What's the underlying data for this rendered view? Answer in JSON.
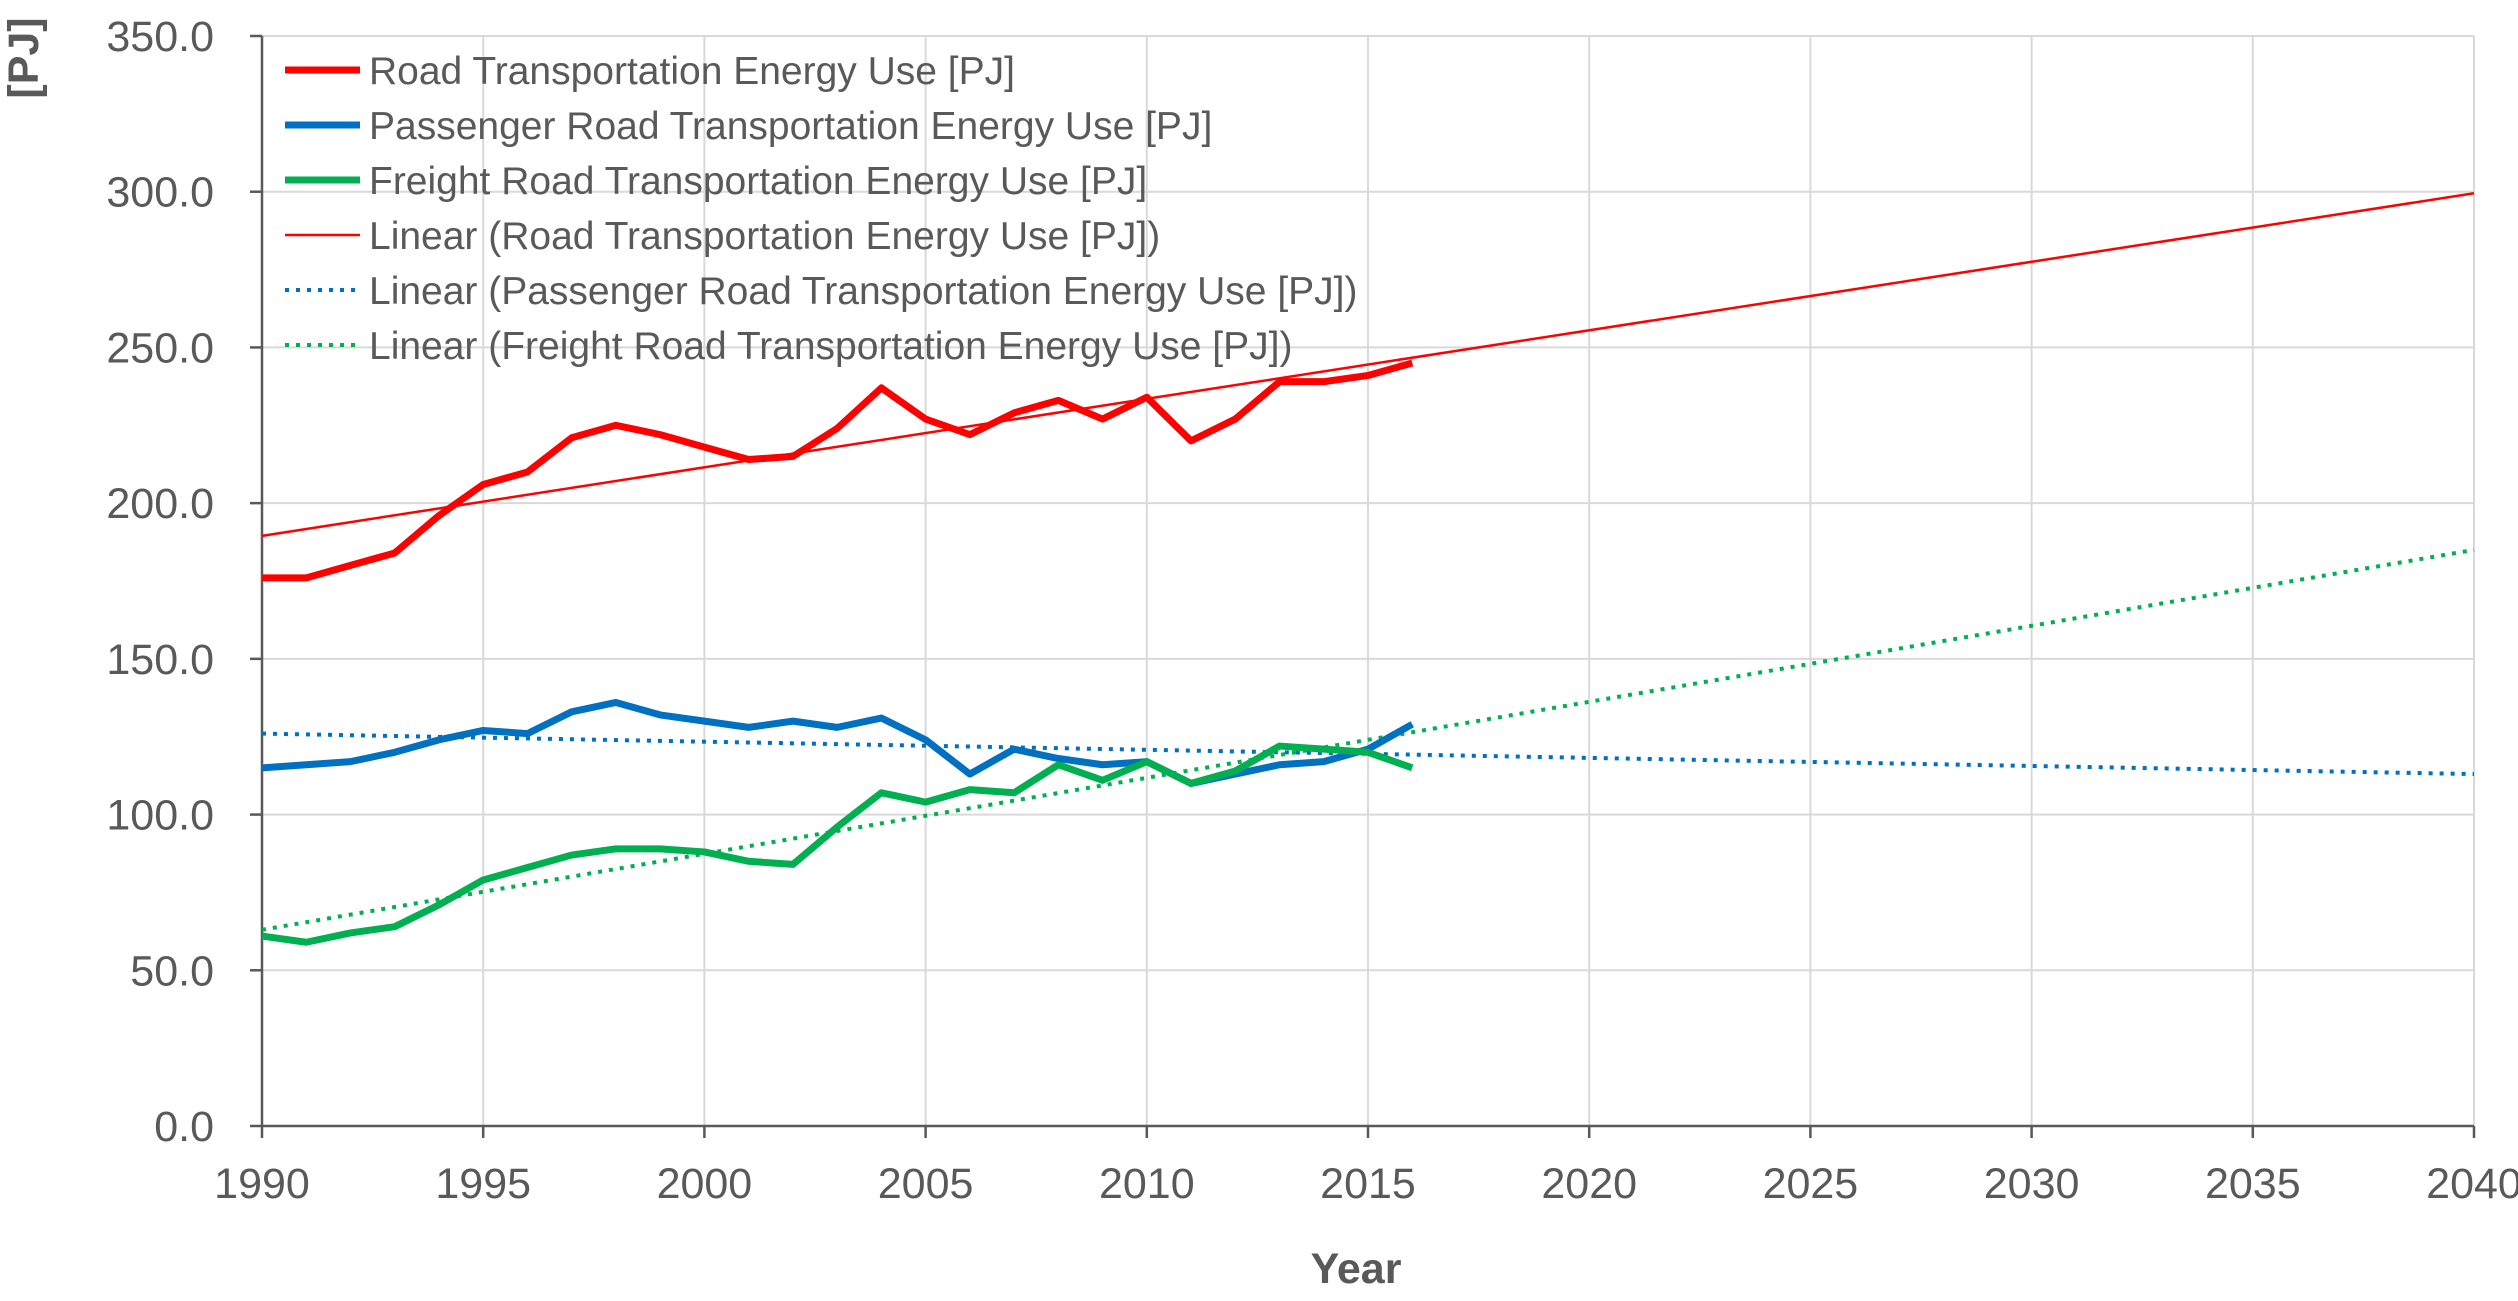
{
  "chart_data": {
    "type": "line",
    "title": "",
    "xlabel": "Year",
    "ylabel": "[PJ]",
    "xlim": [
      1990,
      2040
    ],
    "ylim": [
      0,
      350
    ],
    "grid": true,
    "legend_position": "top-left",
    "x_ticks": [
      1990,
      1995,
      2000,
      2005,
      2010,
      2015,
      2020,
      2025,
      2030,
      2035,
      2040
    ],
    "x_tick_labels": [
      "1990",
      "1995",
      "2000",
      "2005",
      "2010",
      "2015",
      "2020",
      "2025",
      "2030",
      "2035",
      "2040"
    ],
    "y_ticks": [
      0,
      50,
      100,
      150,
      200,
      250,
      300,
      350
    ],
    "y_tick_labels": [
      "0.0",
      "50.0",
      "100.0",
      "150.0",
      "200.0",
      "250.0",
      "300.0",
      "350.0"
    ],
    "x": [
      1990,
      1991,
      1992,
      1993,
      1994,
      1995,
      1996,
      1997,
      1998,
      1999,
      2000,
      2001,
      2002,
      2003,
      2004,
      2005,
      2006,
      2007,
      2008,
      2009,
      2010,
      2011,
      2012,
      2013,
      2014,
      2015,
      2016
    ],
    "series": [
      {
        "name": "Road Transportation Energy Use [PJ]",
        "color": "#ff0000",
        "style": "solid-thick",
        "values": [
          176,
          176,
          180,
          184,
          196,
          206,
          210,
          221,
          225,
          222,
          218,
          214,
          215,
          224,
          237,
          227,
          222,
          229,
          233,
          227,
          234,
          220,
          227,
          239,
          239,
          241,
          245
        ]
      },
      {
        "name": "Passenger Road Transportation Energy Use [PJ]",
        "color": "#0070c0",
        "style": "solid-thick",
        "values": [
          115,
          116,
          117,
          120,
          124,
          127,
          126,
          133,
          136,
          132,
          130,
          128,
          130,
          128,
          131,
          124,
          113,
          121,
          118,
          116,
          117,
          110,
          113,
          116,
          117,
          121,
          129
        ]
      },
      {
        "name": "Freight Road Transportation Energy Use [PJ]",
        "color": "#00b050",
        "style": "solid-thick",
        "values": [
          61,
          59,
          62,
          64,
          71,
          79,
          83,
          87,
          89,
          89,
          88,
          85,
          84,
          96,
          107,
          104,
          108,
          107,
          116,
          111,
          117,
          110,
          114,
          122,
          121,
          120,
          115
        ]
      }
    ],
    "trendlines": [
      {
        "name": "Linear (Road Transportation Energy Use [PJ])",
        "color": "#ff0000",
        "style": "solid-thin",
        "x": [
          1990,
          2040
        ],
        "values": [
          189.5,
          299.5
        ]
      },
      {
        "name": "Linear (Passenger Road Transportation Energy Use [PJ])",
        "color": "#0070c0",
        "style": "dotted",
        "x": [
          1990,
          2040
        ],
        "values": [
          126,
          113
        ]
      },
      {
        "name": "Linear (Freight Road Transportation Energy Use [PJ])",
        "color": "#00b050",
        "style": "dotted",
        "x": [
          1990,
          2040
        ],
        "values": [
          63,
          185
        ]
      }
    ]
  }
}
